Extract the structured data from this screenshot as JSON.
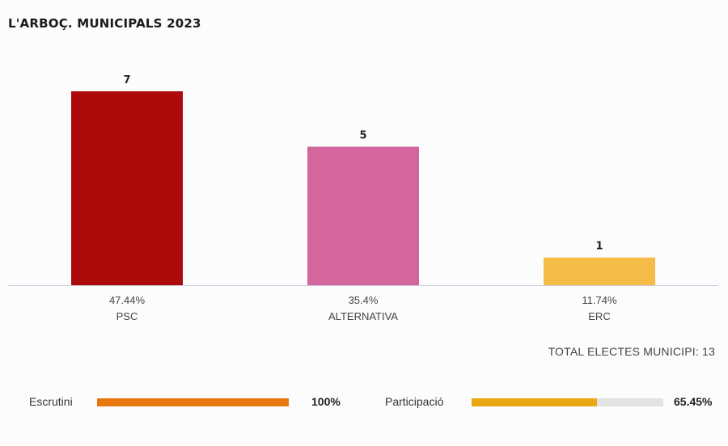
{
  "title": "L'ARBOÇ. MUNICIPALS 2023",
  "chart_data": {
    "type": "bar",
    "categories": [
      "PSC",
      "ALTERNATIVA",
      "ERC"
    ],
    "values": [
      7,
      5,
      1
    ],
    "percentages": [
      "47.44%",
      "35.4%",
      "11.74%"
    ],
    "colors": [
      "#ad0b0b",
      "#d3679d",
      "#f5bc47"
    ],
    "ylim": [
      0,
      7
    ]
  },
  "total_label": "TOTAL ELECTES MUNICIPI: 13",
  "progress": {
    "escrutini": {
      "label": "Escrutini",
      "value_text": "100%",
      "fraction": 1.0,
      "color": "#e9770f"
    },
    "participacio": {
      "label": "Participació",
      "value_text": "65.45%",
      "fraction": 0.6545,
      "color": "#e9a712"
    }
  }
}
